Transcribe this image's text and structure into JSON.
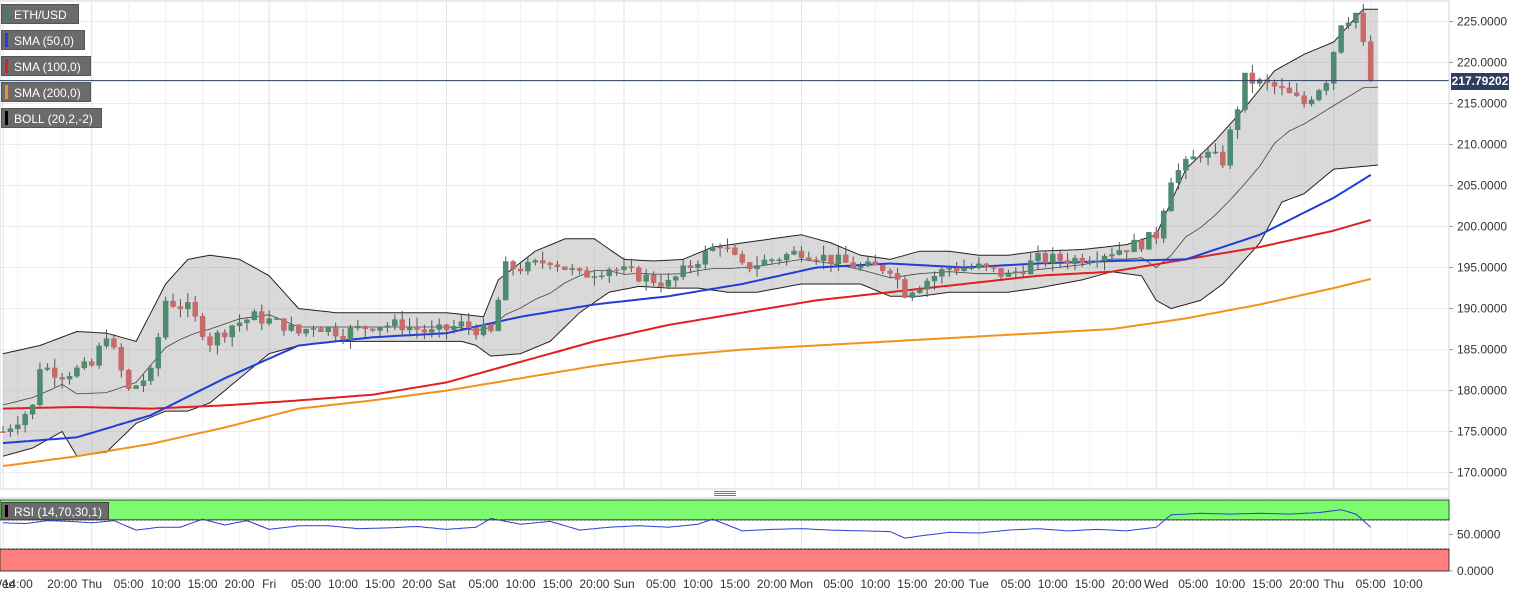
{
  "chart_data": {
    "type": "candlestick",
    "symbol": "ETH/USD",
    "legend": [
      {
        "label": "ETH/USD",
        "color": "#2e8b57"
      },
      {
        "label": "SMA (50,0)",
        "color": "#1f3ed6"
      },
      {
        "label": "SMA (100,0)",
        "color": "#e02020"
      },
      {
        "label": "SMA (200,0)",
        "color": "#f39219"
      },
      {
        "label": "BOLL (20,2,-2)",
        "color": "#000000"
      }
    ],
    "last_price": "217.79202",
    "last_price_value": 217.79202,
    "ylim": [
      168,
      227.5
    ],
    "y_ticks": [
      "225.0000",
      "220.0000",
      "215.0000",
      "210.0000",
      "205.0000",
      "200.0000",
      "195.0000",
      "190.0000",
      "185.0000",
      "180.0000",
      "175.0000",
      "170.0000"
    ],
    "x_ticks": [
      "Wed",
      "14:00",
      "20:00",
      "Thu",
      "05:00",
      "10:00",
      "15:00",
      "20:00",
      "Fri",
      "05:00",
      "10:00",
      "15:00",
      "20:00",
      "Sat",
      "05:00",
      "10:00",
      "15:00",
      "20:00",
      "Sun",
      "05:00",
      "10:00",
      "15:00",
      "20:00",
      "Mon",
      "05:00",
      "10:00",
      "15:00",
      "20:00",
      "Tue",
      "05:00",
      "10:00",
      "15:00",
      "20:00",
      "Wed",
      "05:00",
      "10:00",
      "15:00",
      "20:00",
      "Thu",
      "05:00",
      "10:00"
    ],
    "x_range_hours": [
      0,
      196
    ],
    "x_tick_hours": [
      0,
      2,
      8,
      12,
      17,
      22,
      27,
      32,
      36,
      41,
      46,
      51,
      56,
      60,
      65,
      70,
      75,
      80,
      84,
      89,
      94,
      99,
      104,
      108,
      113,
      118,
      123,
      128,
      132,
      137,
      142,
      147,
      152,
      156,
      161,
      166,
      171,
      176,
      180,
      185,
      190
    ],
    "close_anchors": [
      [
        0,
        175
      ],
      [
        4,
        178
      ],
      [
        5,
        183
      ],
      [
        8,
        182
      ],
      [
        12,
        183
      ],
      [
        14,
        187
      ],
      [
        17,
        180
      ],
      [
        20,
        182
      ],
      [
        22,
        191
      ],
      [
        25,
        190
      ],
      [
        28,
        186
      ],
      [
        31,
        188
      ],
      [
        34,
        189
      ],
      [
        38,
        188
      ],
      [
        40,
        187
      ],
      [
        42,
        188
      ],
      [
        46,
        187
      ],
      [
        50,
        188
      ],
      [
        54,
        188
      ],
      [
        58,
        187
      ],
      [
        62,
        188
      ],
      [
        66,
        187
      ],
      [
        68,
        195
      ],
      [
        71,
        195
      ],
      [
        74,
        196
      ],
      [
        78,
        194
      ],
      [
        82,
        195
      ],
      [
        86,
        194
      ],
      [
        90,
        193
      ],
      [
        94,
        196
      ],
      [
        97,
        198
      ],
      [
        100,
        195
      ],
      [
        104,
        196
      ],
      [
        108,
        197
      ],
      [
        112,
        196
      ],
      [
        116,
        195
      ],
      [
        120,
        195
      ],
      [
        122,
        192
      ],
      [
        124,
        193
      ],
      [
        128,
        195
      ],
      [
        132,
        195
      ],
      [
        136,
        194
      ],
      [
        140,
        196
      ],
      [
        145,
        196
      ],
      [
        150,
        197
      ],
      [
        154,
        198
      ],
      [
        156,
        199
      ],
      [
        158,
        206
      ],
      [
        162,
        209
      ],
      [
        165,
        208
      ],
      [
        168,
        218
      ],
      [
        172,
        217
      ],
      [
        176,
        215
      ],
      [
        179,
        218
      ],
      [
        181,
        225
      ],
      [
        183,
        226
      ],
      [
        184,
        222
      ],
      [
        185,
        217.79
      ]
    ],
    "sma50_anchors": [
      [
        0,
        173.6
      ],
      [
        10,
        174.3
      ],
      [
        20,
        177
      ],
      [
        30,
        181.5
      ],
      [
        40,
        185.5
      ],
      [
        50,
        186.5
      ],
      [
        60,
        187
      ],
      [
        70,
        189
      ],
      [
        80,
        190.5
      ],
      [
        90,
        191.5
      ],
      [
        100,
        193
      ],
      [
        110,
        195
      ],
      [
        120,
        195.5
      ],
      [
        130,
        195
      ],
      [
        140,
        195.5
      ],
      [
        150,
        195.8
      ],
      [
        160,
        196
      ],
      [
        170,
        199
      ],
      [
        180,
        203.5
      ],
      [
        185,
        206.3
      ]
    ],
    "sma100_anchors": [
      [
        0,
        177.8
      ],
      [
        10,
        178
      ],
      [
        20,
        177.8
      ],
      [
        30,
        178.2
      ],
      [
        40,
        178.8
      ],
      [
        50,
        179.5
      ],
      [
        60,
        181
      ],
      [
        70,
        183.5
      ],
      [
        80,
        186
      ],
      [
        90,
        188
      ],
      [
        100,
        189.5
      ],
      [
        110,
        191
      ],
      [
        120,
        192
      ],
      [
        130,
        193
      ],
      [
        140,
        194
      ],
      [
        150,
        194.5
      ],
      [
        160,
        196
      ],
      [
        170,
        197.5
      ],
      [
        180,
        199.5
      ],
      [
        185,
        200.8
      ]
    ],
    "sma200_anchors": [
      [
        0,
        170.8
      ],
      [
        10,
        172
      ],
      [
        20,
        173.5
      ],
      [
        30,
        175.5
      ],
      [
        40,
        177.8
      ],
      [
        50,
        178.8
      ],
      [
        60,
        180
      ],
      [
        70,
        181.5
      ],
      [
        80,
        183
      ],
      [
        90,
        184.2
      ],
      [
        100,
        185
      ],
      [
        110,
        185.5
      ],
      [
        120,
        186
      ],
      [
        130,
        186.5
      ],
      [
        140,
        187
      ],
      [
        150,
        187.5
      ],
      [
        160,
        188.8
      ],
      [
        170,
        190.5
      ],
      [
        180,
        192.5
      ],
      [
        185,
        193.6
      ]
    ],
    "boll_upper_anchors": [
      [
        0,
        184.5
      ],
      [
        5,
        185.5
      ],
      [
        10,
        187.2
      ],
      [
        14,
        187
      ],
      [
        18,
        186
      ],
      [
        22,
        193
      ],
      [
        25,
        196
      ],
      [
        28,
        196.5
      ],
      [
        32,
        196
      ],
      [
        36,
        194
      ],
      [
        40,
        190
      ],
      [
        45,
        189.5
      ],
      [
        50,
        189.5
      ],
      [
        55,
        189.5
      ],
      [
        60,
        189.5
      ],
      [
        65,
        189
      ],
      [
        67,
        193.5
      ],
      [
        72,
        197
      ],
      [
        76,
        198.5
      ],
      [
        80,
        198.5
      ],
      [
        84,
        196
      ],
      [
        88,
        195.8
      ],
      [
        92,
        196
      ],
      [
        96,
        197.5
      ],
      [
        100,
        198
      ],
      [
        104,
        198.5
      ],
      [
        108,
        199
      ],
      [
        112,
        198
      ],
      [
        116,
        196.5
      ],
      [
        120,
        196
      ],
      [
        124,
        197
      ],
      [
        128,
        197
      ],
      [
        132,
        196.5
      ],
      [
        136,
        196.5
      ],
      [
        140,
        197
      ],
      [
        146,
        197.2
      ],
      [
        152,
        197.8
      ],
      [
        156,
        199
      ],
      [
        160,
        207
      ],
      [
        164,
        210.5
      ],
      [
        168,
        214.5
      ],
      [
        172,
        219
      ],
      [
        176,
        221
      ],
      [
        180,
        222.5
      ],
      [
        184,
        226.5
      ],
      [
        186,
        226.5
      ]
    ],
    "boll_lower_anchors": [
      [
        0,
        172
      ],
      [
        4,
        173
      ],
      [
        8,
        175
      ],
      [
        10,
        172
      ],
      [
        14,
        172.5
      ],
      [
        18,
        176
      ],
      [
        22,
        177.5
      ],
      [
        25,
        177.5
      ],
      [
        28,
        178.5
      ],
      [
        32,
        181.5
      ],
      [
        36,
        184.5
      ],
      [
        40,
        185.5
      ],
      [
        45,
        186
      ],
      [
        50,
        186
      ],
      [
        55,
        186
      ],
      [
        60,
        186
      ],
      [
        62,
        186
      ],
      [
        64,
        185.5
      ],
      [
        66,
        184.2
      ],
      [
        70,
        184.5
      ],
      [
        74,
        186
      ],
      [
        78,
        189.5
      ],
      [
        82,
        192
      ],
      [
        86,
        192.7
      ],
      [
        90,
        192.5
      ],
      [
        94,
        192.5
      ],
      [
        98,
        192
      ],
      [
        102,
        192
      ],
      [
        108,
        193
      ],
      [
        112,
        193
      ],
      [
        116,
        193
      ],
      [
        120,
        191.5
      ],
      [
        124,
        191.5
      ],
      [
        128,
        192
      ],
      [
        132,
        192
      ],
      [
        136,
        192
      ],
      [
        140,
        192.5
      ],
      [
        146,
        193.5
      ],
      [
        150,
        194.5
      ],
      [
        154,
        194
      ],
      [
        156,
        191
      ],
      [
        158,
        190
      ],
      [
        160,
        190.5
      ],
      [
        162,
        191
      ],
      [
        165,
        193
      ],
      [
        170,
        198
      ],
      [
        173,
        203
      ],
      [
        176,
        204
      ],
      [
        180,
        207
      ],
      [
        186,
        207.5
      ]
    ],
    "rsi_label": "RSI (14,70,30,1)",
    "rsi_ylim": [
      0,
      100
    ],
    "rsi_y_ticks": [
      "50.0000",
      "0.0000"
    ],
    "rsi_overbought": 70,
    "rsi_oversold": 30,
    "rsi_anchors": [
      [
        0,
        66
      ],
      [
        3,
        65
      ],
      [
        6,
        69
      ],
      [
        9,
        68
      ],
      [
        12,
        66
      ],
      [
        15,
        69
      ],
      [
        18,
        56
      ],
      [
        21,
        60
      ],
      [
        24,
        60
      ],
      [
        27,
        71
      ],
      [
        30,
        63
      ],
      [
        33,
        69
      ],
      [
        36,
        57
      ],
      [
        40,
        62
      ],
      [
        44,
        62
      ],
      [
        48,
        58
      ],
      [
        52,
        59
      ],
      [
        56,
        61
      ],
      [
        60,
        57
      ],
      [
        64,
        60
      ],
      [
        66,
        72
      ],
      [
        70,
        64
      ],
      [
        74,
        68
      ],
      [
        78,
        56
      ],
      [
        82,
        60
      ],
      [
        86,
        62
      ],
      [
        90,
        60
      ],
      [
        94,
        64
      ],
      [
        96,
        71
      ],
      [
        100,
        55
      ],
      [
        104,
        57
      ],
      [
        108,
        58
      ],
      [
        112,
        56
      ],
      [
        116,
        55
      ],
      [
        120,
        54
      ],
      [
        122,
        45
      ],
      [
        124,
        48
      ],
      [
        128,
        53
      ],
      [
        132,
        52
      ],
      [
        136,
        56
      ],
      [
        140,
        58
      ],
      [
        144,
        55
      ],
      [
        148,
        57
      ],
      [
        152,
        55
      ],
      [
        156,
        60
      ],
      [
        158,
        77
      ],
      [
        162,
        79
      ],
      [
        166,
        78
      ],
      [
        170,
        79
      ],
      [
        174,
        78
      ],
      [
        178,
        80
      ],
      [
        181,
        84
      ],
      [
        183,
        78
      ],
      [
        185,
        60
      ]
    ],
    "grid": true
  }
}
